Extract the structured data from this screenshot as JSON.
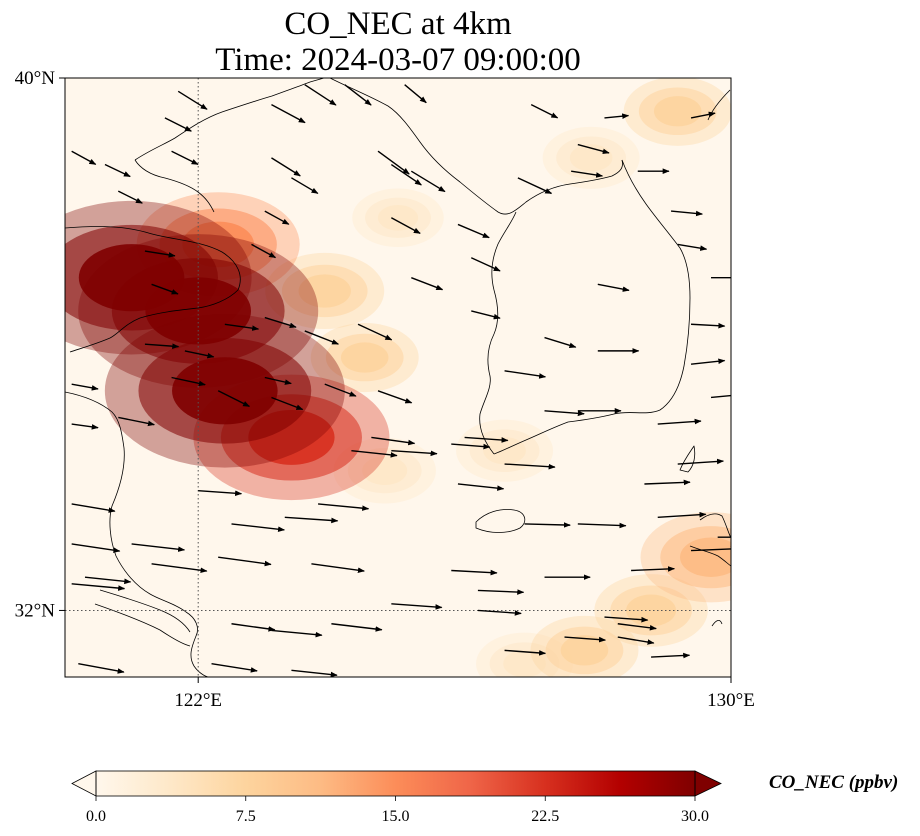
{
  "title": {
    "line1": "CO_NEC at 4km",
    "line2": "Time: 2024-03-07 09:00:00"
  },
  "axes": {
    "lat_ticks": [
      {
        "label": "40°N",
        "value": 40
      },
      {
        "label": "32°N",
        "value": 32
      }
    ],
    "lon_ticks": [
      {
        "label": "122°E",
        "value": 122
      },
      {
        "label": "130°E",
        "value": 130
      }
    ],
    "gridlines": [
      {
        "axis": "lon",
        "value": 122
      },
      {
        "axis": "lat",
        "value": 32
      }
    ],
    "extent": {
      "lon_min": 120,
      "lon_max": 130,
      "lat_min": 31,
      "lat_max": 40
    }
  },
  "colorbar": {
    "label": "CO_NEC (ppbv)",
    "ticks": [
      "0.0",
      "7.5",
      "15.0",
      "22.5",
      "30.0"
    ],
    "min": 0,
    "max": 30,
    "extend": "both",
    "colormap": "OrRd",
    "colors": [
      "#fff7ec",
      "#fee8c8",
      "#fdd49e",
      "#fdbb84",
      "#fc8d59",
      "#ef6548",
      "#d7301f",
      "#b30000",
      "#7f0000"
    ]
  },
  "chart_data": {
    "type": "heatmap",
    "title": "CO_NEC at 4km\nTime: 2024-03-07 09:00:00",
    "field": "CO_NEC (ppbv)",
    "level": "4km",
    "grid": {
      "lon_range": [
        120,
        130
      ],
      "lat_range": [
        31,
        40
      ]
    },
    "features": [
      {
        "desc": "plume",
        "lon": 121.0,
        "lat": 37.0,
        "value": 30
      },
      {
        "desc": "plume",
        "lon": 122.0,
        "lat": 36.5,
        "value": 30
      },
      {
        "desc": "plume",
        "lon": 122.4,
        "lat": 35.3,
        "value": 30
      },
      {
        "desc": "plume",
        "lon": 123.4,
        "lat": 34.6,
        "value": 22
      },
      {
        "desc": "plume",
        "lon": 122.3,
        "lat": 37.5,
        "value": 16
      },
      {
        "desc": "plume",
        "lon": 123.9,
        "lat": 36.8,
        "value": 8
      },
      {
        "desc": "plume",
        "lon": 124.5,
        "lat": 35.8,
        "value": 6
      },
      {
        "desc": "plume",
        "lon": 124.8,
        "lat": 34.1,
        "value": 5
      },
      {
        "desc": "plume",
        "lon": 126.6,
        "lat": 34.4,
        "value": 4
      },
      {
        "desc": "plume",
        "lon": 125.0,
        "lat": 37.9,
        "value": 3
      },
      {
        "desc": "plume",
        "lon": 127.9,
        "lat": 38.8,
        "value": 4
      },
      {
        "desc": "plume",
        "lon": 129.2,
        "lat": 39.5,
        "value": 6
      },
      {
        "desc": "plume",
        "lon": 129.7,
        "lat": 32.8,
        "value": 12
      },
      {
        "desc": "plume",
        "lon": 128.8,
        "lat": 32.0,
        "value": 7
      },
      {
        "desc": "plume",
        "lon": 127.8,
        "lat": 31.4,
        "value": 6
      },
      {
        "desc": "plume",
        "lon": 126.9,
        "lat": 31.2,
        "value": 4
      }
    ],
    "wind_vectors": [
      {
        "lon": 120.1,
        "lat": 38.9,
        "u": 0.4,
        "v": -0.22
      },
      {
        "lon": 120.6,
        "lat": 38.7,
        "u": 0.42,
        "v": -0.2
      },
      {
        "lon": 120.8,
        "lat": 38.3,
        "u": 0.4,
        "v": -0.2
      },
      {
        "lon": 121.7,
        "lat": 39.8,
        "u": 0.48,
        "v": -0.3
      },
      {
        "lon": 121.5,
        "lat": 39.4,
        "u": 0.44,
        "v": -0.22
      },
      {
        "lon": 121.6,
        "lat": 38.9,
        "u": 0.44,
        "v": -0.22
      },
      {
        "lon": 123.1,
        "lat": 39.6,
        "u": 0.56,
        "v": -0.3
      },
      {
        "lon": 123.6,
        "lat": 39.9,
        "u": 0.52,
        "v": -0.34
      },
      {
        "lon": 124.2,
        "lat": 39.9,
        "u": 0.44,
        "v": -0.34
      },
      {
        "lon": 125.1,
        "lat": 39.9,
        "u": 0.36,
        "v": -0.3
      },
      {
        "lon": 123.1,
        "lat": 38.8,
        "u": 0.48,
        "v": -0.3
      },
      {
        "lon": 123.4,
        "lat": 38.5,
        "u": 0.44,
        "v": -0.26
      },
      {
        "lon": 123.0,
        "lat": 38.0,
        "u": 0.4,
        "v": -0.22
      },
      {
        "lon": 122.8,
        "lat": 37.5,
        "u": 0.4,
        "v": -0.22
      },
      {
        "lon": 124.7,
        "lat": 38.9,
        "u": 0.52,
        "v": -0.38
      },
      {
        "lon": 124.9,
        "lat": 38.7,
        "u": 0.5,
        "v": -0.34
      },
      {
        "lon": 125.2,
        "lat": 38.6,
        "u": 0.56,
        "v": -0.34
      },
      {
        "lon": 124.9,
        "lat": 37.9,
        "u": 0.48,
        "v": -0.26
      },
      {
        "lon": 125.9,
        "lat": 37.8,
        "u": 0.52,
        "v": -0.22
      },
      {
        "lon": 126.8,
        "lat": 38.5,
        "u": 0.56,
        "v": -0.26
      },
      {
        "lon": 127.0,
        "lat": 39.6,
        "u": 0.44,
        "v": -0.22
      },
      {
        "lon": 128.1,
        "lat": 39.4,
        "u": 0.4,
        "v": 0.04
      },
      {
        "lon": 129.4,
        "lat": 39.4,
        "u": 0.4,
        "v": 0.08
      },
      {
        "lon": 127.7,
        "lat": 39.0,
        "u": 0.52,
        "v": -0.14
      },
      {
        "lon": 127.6,
        "lat": 38.6,
        "u": 0.52,
        "v": -0.08
      },
      {
        "lon": 128.6,
        "lat": 38.6,
        "u": 0.52,
        "v": 0.0
      },
      {
        "lon": 129.1,
        "lat": 38.0,
        "u": 0.52,
        "v": -0.05
      },
      {
        "lon": 129.2,
        "lat": 37.5,
        "u": 0.48,
        "v": -0.08
      },
      {
        "lon": 129.7,
        "lat": 37.0,
        "u": 0.56,
        "v": 0.0
      },
      {
        "lon": 128.0,
        "lat": 36.9,
        "u": 0.52,
        "v": -0.1
      },
      {
        "lon": 129.4,
        "lat": 36.3,
        "u": 0.56,
        "v": -0.03
      },
      {
        "lon": 129.4,
        "lat": 35.7,
        "u": 0.56,
        "v": 0.06
      },
      {
        "lon": 129.7,
        "lat": 35.2,
        "u": 0.52,
        "v": 0.05
      },
      {
        "lon": 128.0,
        "lat": 35.9,
        "u": 0.68,
        "v": 0.0
      },
      {
        "lon": 127.2,
        "lat": 36.1,
        "u": 0.52,
        "v": -0.16
      },
      {
        "lon": 126.1,
        "lat": 37.3,
        "u": 0.48,
        "v": -0.22
      },
      {
        "lon": 126.1,
        "lat": 36.5,
        "u": 0.48,
        "v": -0.12
      },
      {
        "lon": 125.2,
        "lat": 37.0,
        "u": 0.52,
        "v": -0.2
      },
      {
        "lon": 126.6,
        "lat": 35.6,
        "u": 0.68,
        "v": -0.1
      },
      {
        "lon": 127.2,
        "lat": 35.0,
        "u": 0.66,
        "v": -0.05
      },
      {
        "lon": 127.7,
        "lat": 35.0,
        "u": 0.72,
        "v": 0.0
      },
      {
        "lon": 128.9,
        "lat": 34.8,
        "u": 0.72,
        "v": 0.05
      },
      {
        "lon": 129.2,
        "lat": 34.2,
        "u": 0.76,
        "v": 0.05
      },
      {
        "lon": 126.0,
        "lat": 34.6,
        "u": 0.72,
        "v": -0.05
      },
      {
        "lon": 124.4,
        "lat": 36.3,
        "u": 0.56,
        "v": -0.26
      },
      {
        "lon": 124.7,
        "lat": 35.3,
        "u": 0.56,
        "v": -0.2
      },
      {
        "lon": 123.6,
        "lat": 36.2,
        "u": 0.56,
        "v": -0.22
      },
      {
        "lon": 123.0,
        "lat": 36.4,
        "u": 0.52,
        "v": -0.16
      },
      {
        "lon": 122.4,
        "lat": 36.3,
        "u": 0.56,
        "v": -0.08
      },
      {
        "lon": 121.3,
        "lat": 36.9,
        "u": 0.44,
        "v": -0.16
      },
      {
        "lon": 121.2,
        "lat": 37.4,
        "u": 0.5,
        "v": -0.08
      },
      {
        "lon": 121.2,
        "lat": 36.0,
        "u": 0.56,
        "v": -0.04
      },
      {
        "lon": 121.6,
        "lat": 35.5,
        "u": 0.56,
        "v": -0.12
      },
      {
        "lon": 121.8,
        "lat": 35.9,
        "u": 0.48,
        "v": -0.1
      },
      {
        "lon": 122.3,
        "lat": 35.3,
        "u": 0.52,
        "v": -0.26
      },
      {
        "lon": 123.1,
        "lat": 35.2,
        "u": 0.52,
        "v": -0.2
      },
      {
        "lon": 123.0,
        "lat": 35.5,
        "u": 0.44,
        "v": -0.1
      },
      {
        "lon": 123.9,
        "lat": 35.4,
        "u": 0.52,
        "v": -0.2
      },
      {
        "lon": 124.6,
        "lat": 34.6,
        "u": 0.72,
        "v": -0.1
      },
      {
        "lon": 124.9,
        "lat": 34.4,
        "u": 0.76,
        "v": -0.05
      },
      {
        "lon": 124.3,
        "lat": 34.4,
        "u": 0.76,
        "v": -0.08
      },
      {
        "lon": 125.8,
        "lat": 34.5,
        "u": 0.64,
        "v": -0.05
      },
      {
        "lon": 120.8,
        "lat": 34.9,
        "u": 0.6,
        "v": -0.12
      },
      {
        "lon": 120.1,
        "lat": 35.4,
        "u": 0.44,
        "v": -0.08
      },
      {
        "lon": 120.1,
        "lat": 34.8,
        "u": 0.44,
        "v": -0.06
      },
      {
        "lon": 122.0,
        "lat": 33.8,
        "u": 0.72,
        "v": -0.05
      },
      {
        "lon": 120.1,
        "lat": 33.6,
        "u": 0.72,
        "v": -0.12
      },
      {
        "lon": 122.5,
        "lat": 33.3,
        "u": 0.88,
        "v": -0.1
      },
      {
        "lon": 123.3,
        "lat": 33.4,
        "u": 0.88,
        "v": -0.06
      },
      {
        "lon": 123.8,
        "lat": 33.6,
        "u": 0.84,
        "v": -0.08
      },
      {
        "lon": 120.1,
        "lat": 33.0,
        "u": 0.8,
        "v": -0.12
      },
      {
        "lon": 121.0,
        "lat": 33.0,
        "u": 0.88,
        "v": -0.1
      },
      {
        "lon": 121.3,
        "lat": 32.7,
        "u": 0.92,
        "v": -0.12
      },
      {
        "lon": 122.3,
        "lat": 32.8,
        "u": 0.88,
        "v": -0.12
      },
      {
        "lon": 123.7,
        "lat": 32.7,
        "u": 0.88,
        "v": -0.12
      },
      {
        "lon": 120.1,
        "lat": 32.4,
        "u": 0.88,
        "v": -0.08
      },
      {
        "lon": 120.3,
        "lat": 32.5,
        "u": 0.76,
        "v": -0.08
      },
      {
        "lon": 125.8,
        "lat": 32.6,
        "u": 0.76,
        "v": -0.04
      },
      {
        "lon": 126.2,
        "lat": 32.3,
        "u": 0.76,
        "v": -0.03
      },
      {
        "lon": 127.2,
        "lat": 32.5,
        "u": 0.76,
        "v": 0.0
      },
      {
        "lon": 128.5,
        "lat": 32.6,
        "u": 0.72,
        "v": 0.03
      },
      {
        "lon": 129.4,
        "lat": 32.9,
        "u": 0.76,
        "v": 0.03
      },
      {
        "lon": 129.8,
        "lat": 33.1,
        "u": 0.88,
        "v": 0.0
      },
      {
        "lon": 126.9,
        "lat": 33.3,
        "u": 0.76,
        "v": -0.02
      },
      {
        "lon": 127.7,
        "lat": 33.3,
        "u": 0.8,
        "v": -0.03
      },
      {
        "lon": 128.9,
        "lat": 33.4,
        "u": 0.8,
        "v": 0.05
      },
      {
        "lon": 128.7,
        "lat": 33.9,
        "u": 0.76,
        "v": 0.03
      },
      {
        "lon": 126.6,
        "lat": 34.2,
        "u": 0.84,
        "v": -0.05
      },
      {
        "lon": 125.9,
        "lat": 33.9,
        "u": 0.76,
        "v": -0.08
      },
      {
        "lon": 124.9,
        "lat": 32.1,
        "u": 0.84,
        "v": -0.06
      },
      {
        "lon": 126.2,
        "lat": 32.0,
        "u": 0.72,
        "v": -0.05
      },
      {
        "lon": 128.1,
        "lat": 31.9,
        "u": 0.72,
        "v": -0.05
      },
      {
        "lon": 128.3,
        "lat": 31.8,
        "u": 0.64,
        "v": -0.08
      },
      {
        "lon": 128.3,
        "lat": 31.6,
        "u": 0.6,
        "v": -0.1
      },
      {
        "lon": 127.5,
        "lat": 31.6,
        "u": 0.68,
        "v": -0.05
      },
      {
        "lon": 126.6,
        "lat": 31.4,
        "u": 0.68,
        "v": -0.05
      },
      {
        "lon": 128.8,
        "lat": 31.3,
        "u": 0.64,
        "v": 0.03
      },
      {
        "lon": 122.5,
        "lat": 31.8,
        "u": 0.72,
        "v": -0.1
      },
      {
        "lon": 123.1,
        "lat": 31.7,
        "u": 0.84,
        "v": -0.08
      },
      {
        "lon": 124.0,
        "lat": 31.8,
        "u": 0.84,
        "v": -0.1
      },
      {
        "lon": 120.2,
        "lat": 31.2,
        "u": 0.76,
        "v": -0.14
      },
      {
        "lon": 122.2,
        "lat": 31.2,
        "u": 0.76,
        "v": -0.12
      },
      {
        "lon": 123.4,
        "lat": 31.1,
        "u": 0.76,
        "v": -0.08
      }
    ]
  }
}
